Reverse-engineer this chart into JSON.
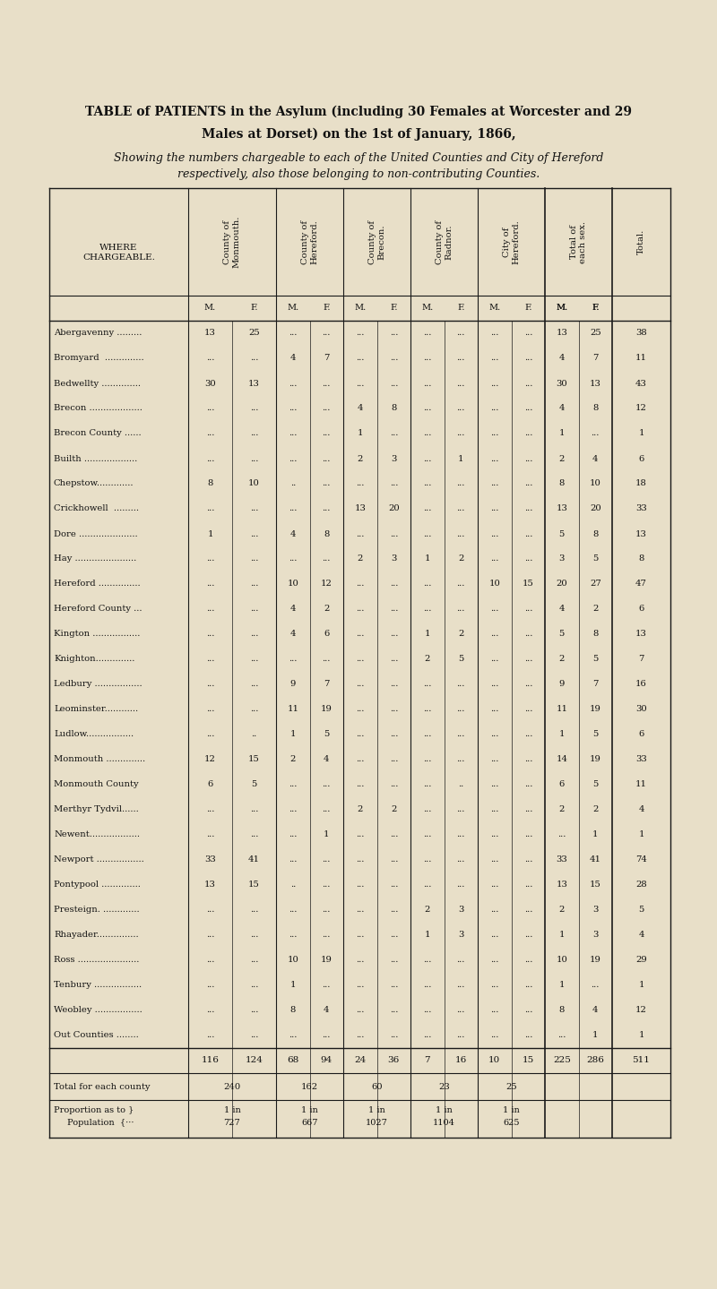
{
  "title_line1": "TABLE of PATIENTS in the Asylum (including 30 Females at Worcester and 29",
  "title_line2": "Males at Dorset) on the 1st of January, 1866,",
  "subtitle_line1": "Showing the numbers chargeable to each of the United Counties and City of Hereford",
  "subtitle_line2": "respectively, also those belonging to non-contributing Counties.",
  "bg_color": "#e8dfc8",
  "col_headers": [
    "County of\nMonmouth.",
    "County of\nHereford.",
    "County of\nBrecon.",
    "County of\nRadnor.",
    "City of\nHereford.",
    "Total of\neach sex.",
    "Total."
  ],
  "rows": [
    {
      "name": "Abergavenny .........",
      "monm": [
        "13",
        "25"
      ],
      "heref": [
        "...",
        "..."
      ],
      "brec": [
        "...",
        "..."
      ],
      "radn": [
        "...",
        "..."
      ],
      "city": [
        "...",
        "..."
      ],
      "totMF": [
        "13",
        "25"
      ],
      "tot": "38"
    },
    {
      "name": "Bromyard  ..............",
      "monm": [
        "...",
        "..."
      ],
      "heref": [
        "4",
        "7"
      ],
      "brec": [
        "...",
        "..."
      ],
      "radn": [
        "...",
        "..."
      ],
      "city": [
        "...",
        "..."
      ],
      "totMF": [
        "4",
        "7"
      ],
      "tot": "11"
    },
    {
      "name": "Bedwellty ..............",
      "monm": [
        "30",
        "13"
      ],
      "heref": [
        "...",
        "..."
      ],
      "brec": [
        "...",
        "..."
      ],
      "radn": [
        "...",
        "..."
      ],
      "city": [
        "...",
        "..."
      ],
      "totMF": [
        "30",
        "13"
      ],
      "tot": "43"
    },
    {
      "name": "Brecon ...................",
      "monm": [
        "...",
        "..."
      ],
      "heref": [
        "...",
        "..."
      ],
      "brec": [
        "4",
        "8"
      ],
      "radn": [
        "...",
        "..."
      ],
      "city": [
        "...",
        "..."
      ],
      "totMF": [
        "4",
        "8"
      ],
      "tot": "12"
    },
    {
      "name": "Brecon County ......",
      "monm": [
        "...",
        "..."
      ],
      "heref": [
        "...",
        "..."
      ],
      "brec": [
        "1",
        "..."
      ],
      "radn": [
        "...",
        "..."
      ],
      "city": [
        "...",
        "..."
      ],
      "totMF": [
        "1",
        "..."
      ],
      "tot": "1"
    },
    {
      "name": "Builth ...................",
      "monm": [
        "...",
        "..."
      ],
      "heref": [
        "...",
        "..."
      ],
      "brec": [
        "2",
        "3"
      ],
      "radn": [
        "...",
        "1"
      ],
      "city": [
        "...",
        "..."
      ],
      "totMF": [
        "2",
        "4"
      ],
      "tot": "6"
    },
    {
      "name": "Chepstow.............",
      "monm": [
        "8",
        "10"
      ],
      "heref": [
        "..",
        "..."
      ],
      "brec": [
        "...",
        "..."
      ],
      "radn": [
        "...",
        "..."
      ],
      "city": [
        "...",
        "..."
      ],
      "totMF": [
        "8",
        "10"
      ],
      "tot": "18"
    },
    {
      "name": "Crickhowell  .........",
      "monm": [
        "...",
        "..."
      ],
      "heref": [
        "...",
        "..."
      ],
      "brec": [
        "13",
        "20"
      ],
      "radn": [
        "...",
        "..."
      ],
      "city": [
        "...",
        "..."
      ],
      "totMF": [
        "13",
        "20"
      ],
      "tot": "33"
    },
    {
      "name": "Dore .....................",
      "monm": [
        "1",
        "..."
      ],
      "heref": [
        "4",
        "8"
      ],
      "brec": [
        "...",
        "..."
      ],
      "radn": [
        "...",
        "..."
      ],
      "city": [
        "...",
        "..."
      ],
      "totMF": [
        "5",
        "8"
      ],
      "tot": "13"
    },
    {
      "name": "Hay ......................",
      "monm": [
        "...",
        "..."
      ],
      "heref": [
        "...",
        "..."
      ],
      "brec": [
        "2",
        "3"
      ],
      "radn": [
        "1",
        "2"
      ],
      "city": [
        "...",
        "..."
      ],
      "totMF": [
        "3",
        "5"
      ],
      "tot": "8"
    },
    {
      "name": "Hereford ...............",
      "monm": [
        "...",
        "..."
      ],
      "heref": [
        "10",
        "12"
      ],
      "brec": [
        "...",
        "..."
      ],
      "radn": [
        "...",
        "..."
      ],
      "city": [
        "10",
        "15"
      ],
      "totMF": [
        "20",
        "27"
      ],
      "tot": "47"
    },
    {
      "name": "Hereford County ...",
      "monm": [
        "...",
        "..."
      ],
      "heref": [
        "4",
        "2"
      ],
      "brec": [
        "...",
        "..."
      ],
      "radn": [
        "...",
        "..."
      ],
      "city": [
        "...",
        "..."
      ],
      "totMF": [
        "4",
        "2"
      ],
      "tot": "6"
    },
    {
      "name": "Kington .................",
      "monm": [
        "...",
        "..."
      ],
      "heref": [
        "4",
        "6"
      ],
      "brec": [
        "...",
        "..."
      ],
      "radn": [
        "1",
        "2"
      ],
      "city": [
        "...",
        "..."
      ],
      "totMF": [
        "5",
        "8"
      ],
      "tot": "13"
    },
    {
      "name": "Knighton..............",
      "monm": [
        "...",
        "..."
      ],
      "heref": [
        "...",
        "..."
      ],
      "brec": [
        "...",
        "..."
      ],
      "radn": [
        "2",
        "5"
      ],
      "city": [
        "...",
        "..."
      ],
      "totMF": [
        "2",
        "5"
      ],
      "tot": "7"
    },
    {
      "name": "Ledbury .................",
      "monm": [
        "...",
        "..."
      ],
      "heref": [
        "9",
        "7"
      ],
      "brec": [
        "...",
        "..."
      ],
      "radn": [
        "...",
        "..."
      ],
      "city": [
        "...",
        "..."
      ],
      "totMF": [
        "9",
        "7"
      ],
      "tot": "16"
    },
    {
      "name": "Leominster............",
      "monm": [
        "...",
        "..."
      ],
      "heref": [
        "11",
        "19"
      ],
      "brec": [
        "...",
        "..."
      ],
      "radn": [
        "...",
        "..."
      ],
      "city": [
        "...",
        "..."
      ],
      "totMF": [
        "11",
        "19"
      ],
      "tot": "30"
    },
    {
      "name": "Ludlow.................",
      "monm": [
        "...",
        ".."
      ],
      "heref": [
        "1",
        "5"
      ],
      "brec": [
        "...",
        "..."
      ],
      "radn": [
        "...",
        "..."
      ],
      "city": [
        "...",
        "..."
      ],
      "totMF": [
        "1",
        "5"
      ],
      "tot": "6"
    },
    {
      "name": "Monmouth ..............",
      "monm": [
        "12",
        "15"
      ],
      "heref": [
        "2",
        "4"
      ],
      "brec": [
        "...",
        "..."
      ],
      "radn": [
        "...",
        "..."
      ],
      "city": [
        "...",
        "..."
      ],
      "totMF": [
        "14",
        "19"
      ],
      "tot": "33"
    },
    {
      "name": "Monmouth County",
      "monm": [
        "6",
        "5"
      ],
      "heref": [
        "...",
        "..."
      ],
      "brec": [
        "...",
        "..."
      ],
      "radn": [
        "...",
        ".."
      ],
      "city": [
        "...",
        "..."
      ],
      "totMF": [
        "6",
        "5"
      ],
      "tot": "11"
    },
    {
      "name": "Merthyr Tydvil......",
      "monm": [
        "...",
        "..."
      ],
      "heref": [
        "...",
        "..."
      ],
      "brec": [
        "2",
        "2"
      ],
      "radn": [
        "...",
        "..."
      ],
      "city": [
        "...",
        "..."
      ],
      "totMF": [
        "2",
        "2"
      ],
      "tot": "4"
    },
    {
      "name": "Newent..................",
      "monm": [
        "...",
        "..."
      ],
      "heref": [
        "...",
        "1"
      ],
      "brec": [
        "...",
        "..."
      ],
      "radn": [
        "...",
        "..."
      ],
      "city": [
        "...",
        "..."
      ],
      "totMF": [
        "...",
        "1"
      ],
      "tot": "1"
    },
    {
      "name": "Newport .................",
      "monm": [
        "33",
        "41"
      ],
      "heref": [
        "...",
        "..."
      ],
      "brec": [
        "...",
        "..."
      ],
      "radn": [
        "...",
        "..."
      ],
      "city": [
        "...",
        "..."
      ],
      "totMF": [
        "33",
        "41"
      ],
      "tot": "74"
    },
    {
      "name": "Pontypool ..............",
      "monm": [
        "13",
        "15"
      ],
      "heref": [
        "..",
        "..."
      ],
      "brec": [
        "...",
        "..."
      ],
      "radn": [
        "...",
        "..."
      ],
      "city": [
        "...",
        "..."
      ],
      "totMF": [
        "13",
        "15"
      ],
      "tot": "28"
    },
    {
      "name": "Presteign. .............",
      "monm": [
        "...",
        "..."
      ],
      "heref": [
        "...",
        "..."
      ],
      "brec": [
        "...",
        "..."
      ],
      "radn": [
        "2",
        "3"
      ],
      "city": [
        "...",
        "..."
      ],
      "totMF": [
        "2",
        "3"
      ],
      "tot": "5"
    },
    {
      "name": "Rhayader...............",
      "monm": [
        "...",
        "..."
      ],
      "heref": [
        "...",
        "..."
      ],
      "brec": [
        "...",
        "..."
      ],
      "radn": [
        "1",
        "3"
      ],
      "city": [
        "...",
        "..."
      ],
      "totMF": [
        "1",
        "3"
      ],
      "tot": "4"
    },
    {
      "name": "Ross ......................",
      "monm": [
        "...",
        "..."
      ],
      "heref": [
        "10",
        "19"
      ],
      "brec": [
        "...",
        "..."
      ],
      "radn": [
        "...",
        "..."
      ],
      "city": [
        "...",
        "..."
      ],
      "totMF": [
        "10",
        "19"
      ],
      "tot": "29"
    },
    {
      "name": "Tenbury .................",
      "monm": [
        "...",
        "..."
      ],
      "heref": [
        "1",
        "..."
      ],
      "brec": [
        "...",
        "..."
      ],
      "radn": [
        "...",
        "..."
      ],
      "city": [
        "...",
        "..."
      ],
      "totMF": [
        "1",
        "..."
      ],
      "tot": "1"
    },
    {
      "name": "Weobley .................",
      "monm": [
        "...",
        "..."
      ],
      "heref": [
        "8",
        "4"
      ],
      "brec": [
        "...",
        "..."
      ],
      "radn": [
        "...",
        "..."
      ],
      "city": [
        "...",
        "..."
      ],
      "totMF": [
        "8",
        "4"
      ],
      "tot": "12"
    },
    {
      "name": "Out Counties ........",
      "monm": [
        "...",
        "..."
      ],
      "heref": [
        "...",
        "..."
      ],
      "brec": [
        "...",
        "..."
      ],
      "radn": [
        "...",
        "..."
      ],
      "city": [
        "...",
        "..."
      ],
      "totMF": [
        "...",
        "1"
      ],
      "tot": "1"
    }
  ],
  "totals_row": {
    "monm": [
      "116",
      "124"
    ],
    "heref": [
      "68",
      "94"
    ],
    "brec": [
      "24",
      "36"
    ],
    "radn": [
      "7",
      "16"
    ],
    "city": [
      "10",
      "15"
    ],
    "totMF": [
      "225",
      "286"
    ],
    "tot": "511"
  },
  "county_totals": {
    "monm": "240",
    "heref": "162",
    "brec": "60",
    "radn": "23",
    "city": "25"
  },
  "proportion_row": {
    "monm": [
      "1 in",
      "727"
    ],
    "heref": [
      "1 in",
      "667"
    ],
    "brec": [
      "1 in",
      "1027"
    ],
    "radn": [
      "1 in",
      "1104"
    ],
    "city": [
      "1 in",
      "625"
    ]
  }
}
